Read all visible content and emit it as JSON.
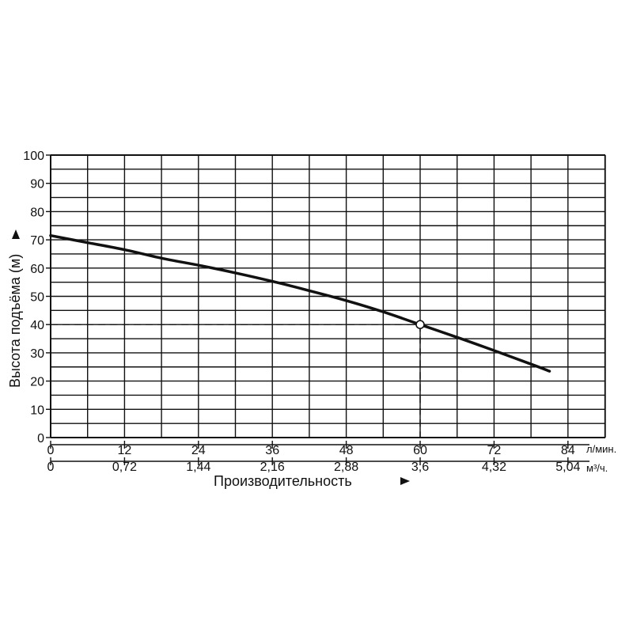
{
  "chart_data": {
    "type": "line",
    "title": "",
    "ylabel": "Высота подъёма (м)",
    "xlabel": "Производительность",
    "y_ticks": [
      "0",
      "10",
      "20",
      "30",
      "40",
      "50",
      "60",
      "70",
      "80",
      "90",
      "100"
    ],
    "ylim": [
      0,
      100
    ],
    "x_primary": {
      "unit": "л/мин.",
      "ticks": [
        "0",
        "12",
        "24",
        "36",
        "48",
        "60",
        "72",
        "84"
      ],
      "range": [
        0,
        84
      ]
    },
    "x_secondary": {
      "unit": "м³/ч.",
      "ticks": [
        "0",
        "0,72",
        "1,44",
        "2,16",
        "2,88",
        "3,6",
        "4,32",
        "5,04"
      ]
    },
    "grid": true,
    "series": [
      {
        "x": [
          0,
          6,
          12,
          18,
          24,
          30,
          36,
          42,
          48,
          54,
          60,
          66,
          72,
          78,
          81
        ],
        "y": [
          71.5,
          69,
          66.5,
          63.5,
          61,
          58.3,
          55.3,
          52,
          48.5,
          44.5,
          40,
          35.5,
          30.8,
          26,
          23.5
        ]
      }
    ],
    "operating_point": {
      "x": 60,
      "y": 40
    },
    "colors": {
      "line": "#111111",
      "grid": "#111111",
      "background": "#ffffff"
    }
  }
}
